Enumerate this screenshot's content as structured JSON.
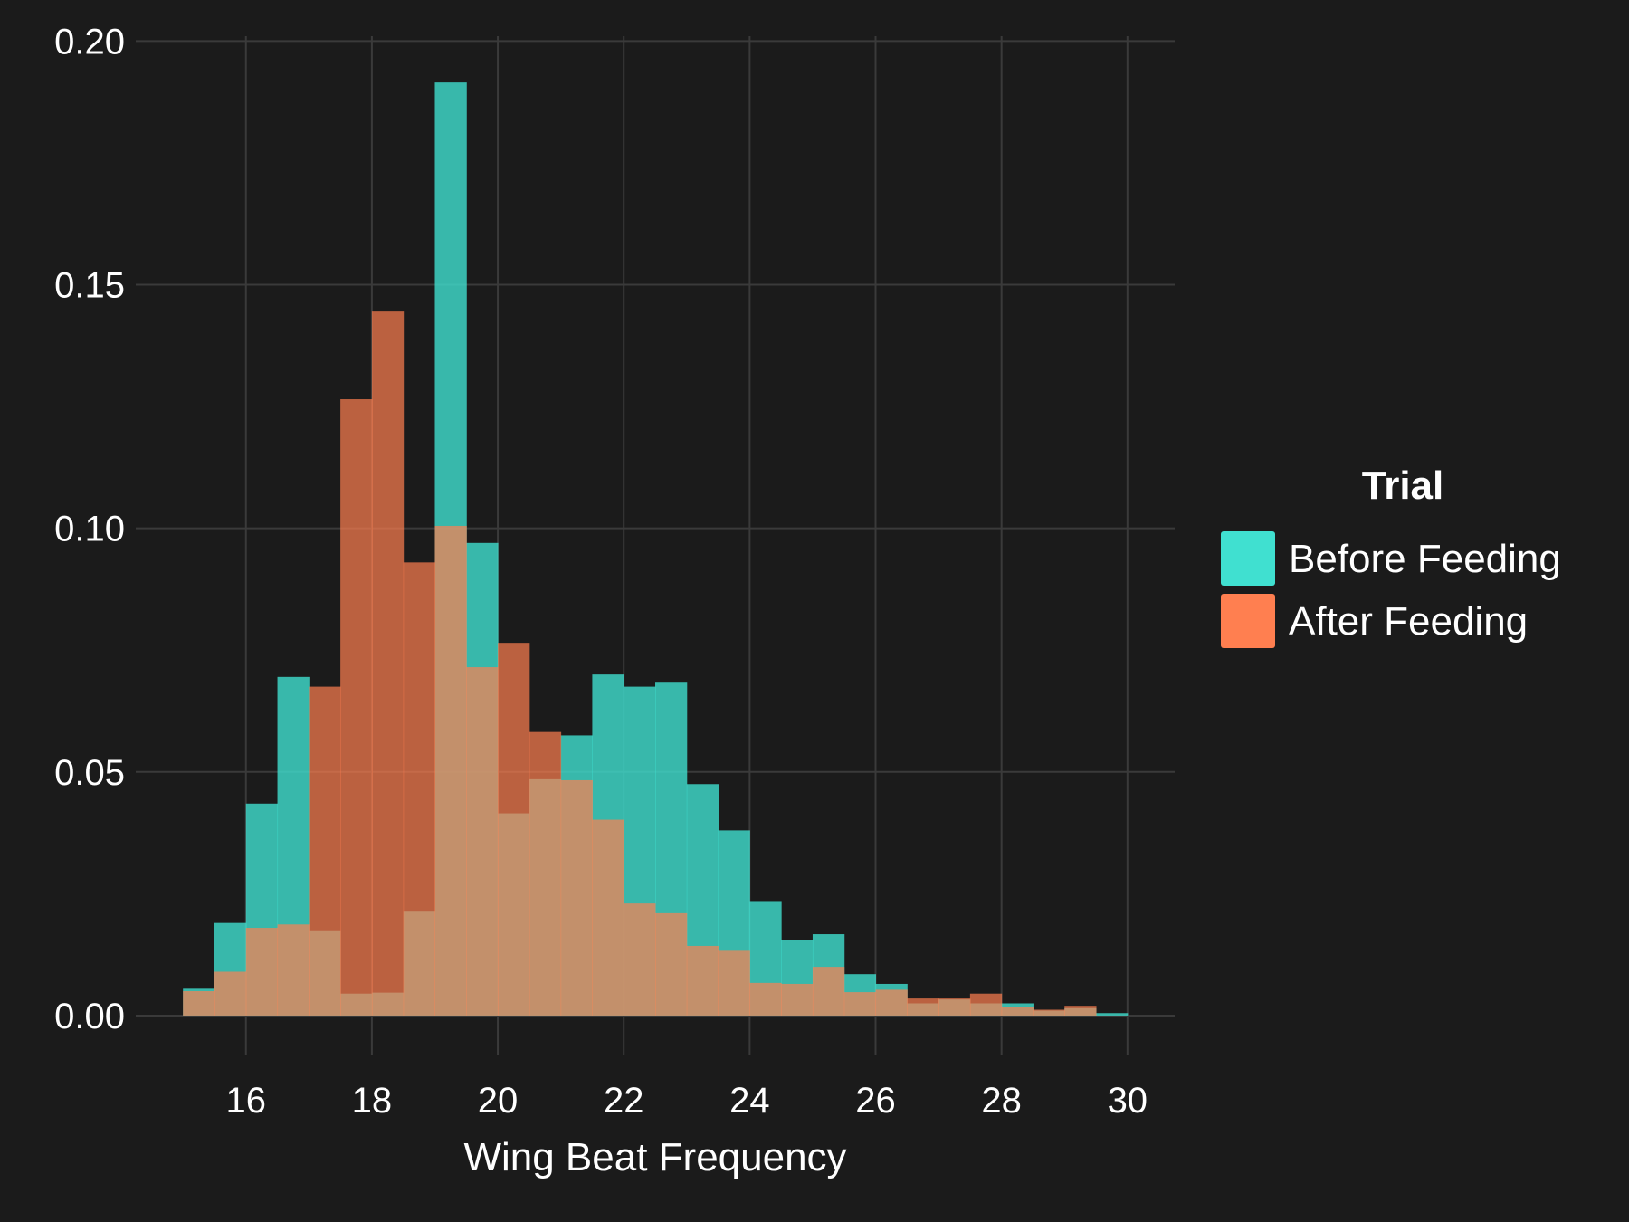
{
  "chart_data": {
    "type": "histogram",
    "xlabel": "Wing Beat Frequency",
    "ylabel": "",
    "xlim": [
      14.25,
      30.75
    ],
    "ylim": [
      -0.008,
      0.201
    ],
    "x_ticks": [
      16,
      18,
      20,
      22,
      24,
      26,
      28,
      30
    ],
    "x_tick_labels": [
      "16",
      "18",
      "20",
      "22",
      "24",
      "26",
      "28",
      "30"
    ],
    "y_ticks": [
      0.0,
      0.05,
      0.1,
      0.15,
      0.2
    ],
    "y_tick_labels": [
      "0.00",
      "0.05",
      "0.10",
      "0.15",
      "0.20"
    ],
    "grid": true,
    "bin_width": 0.5,
    "bin_starts": [
      15.0,
      15.5,
      16.0,
      16.5,
      17.0,
      17.5,
      18.0,
      18.5,
      19.0,
      19.5,
      20.0,
      20.5,
      21.0,
      21.5,
      22.0,
      22.5,
      23.0,
      23.5,
      24.0,
      24.5,
      25.0,
      25.5,
      26.0,
      26.5,
      27.0,
      27.5,
      28.0,
      28.5,
      29.0,
      29.5
    ],
    "series": [
      {
        "name": "Before Feeding",
        "color": "#40e0d0",
        "values": [
          0.0055,
          0.019,
          0.0435,
          0.0695,
          0.0175,
          0.0045,
          0.0047,
          0.0215,
          0.1915,
          0.097,
          0.0415,
          0.0485,
          0.0575,
          0.07,
          0.0675,
          0.0685,
          0.0475,
          0.038,
          0.0235,
          0.0155,
          0.0167,
          0.0085,
          0.0065,
          0.0025,
          0.0033,
          0.0025,
          0.0025,
          0.001,
          0.0015,
          0.0005
        ]
      },
      {
        "name": "After Feeding",
        "color": "#ff7f50",
        "values": [
          0.005,
          0.009,
          0.018,
          0.0187,
          0.0675,
          0.1265,
          0.1445,
          0.093,
          0.1005,
          0.0715,
          0.0765,
          0.0582,
          0.0483,
          0.0402,
          0.023,
          0.021,
          0.0143,
          0.0133,
          0.0067,
          0.0065,
          0.01,
          0.0048,
          0.0053,
          0.0035,
          0.0035,
          0.0045,
          0.0017,
          0.0012,
          0.002,
          0.0
        ]
      }
    ],
    "legend": {
      "title": "Trial",
      "position": "right",
      "items": [
        "Before Feeding",
        "After Feeding"
      ]
    },
    "colors": {
      "background": "#1b1b1b",
      "grid": "#3a3a3a",
      "text": "#ffffff"
    }
  }
}
